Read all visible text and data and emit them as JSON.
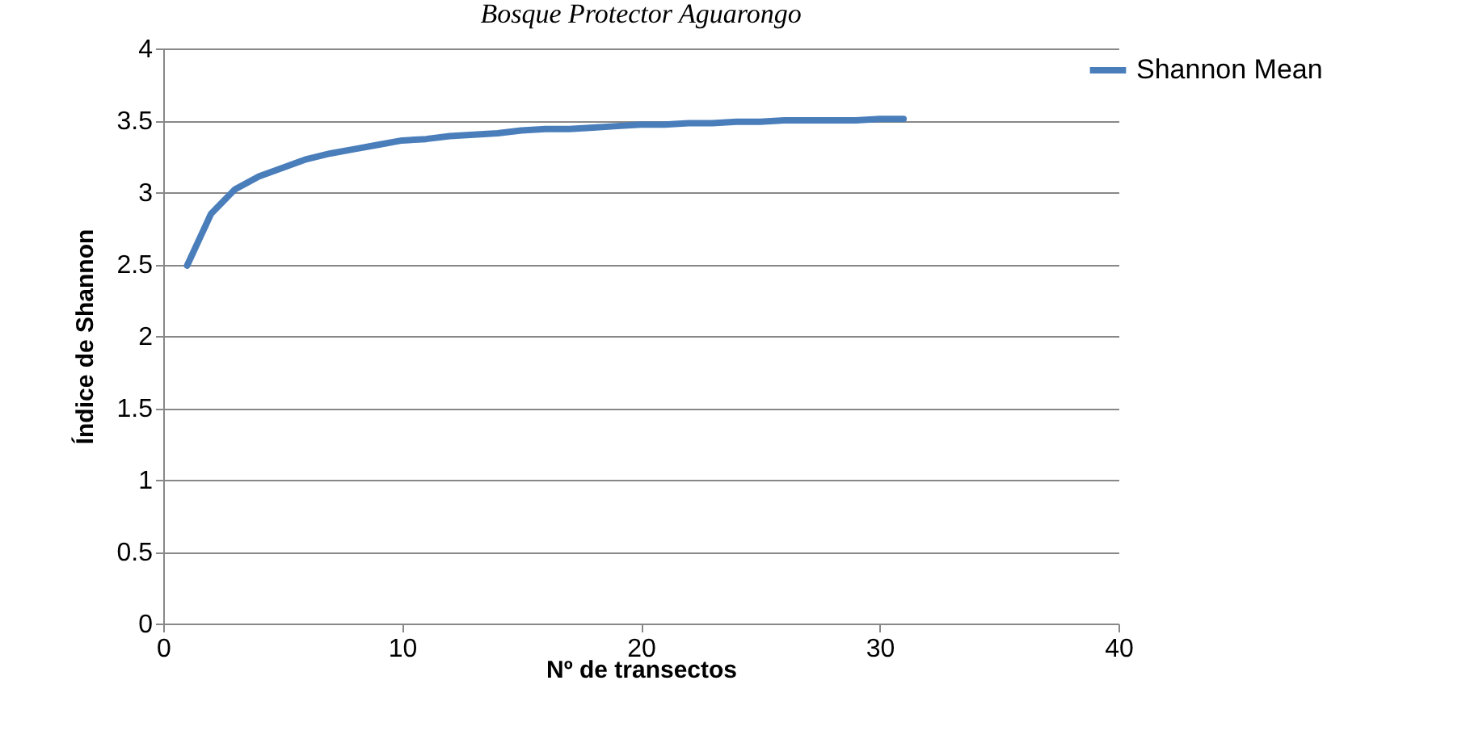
{
  "chart_data": {
    "type": "line",
    "title": "Bosque Protector Aguarongo",
    "xlabel": "Nº de transectos",
    "ylabel": "Índice de Shannon",
    "x": [
      1,
      2,
      3,
      4,
      5,
      6,
      7,
      8,
      9,
      10,
      11,
      12,
      13,
      14,
      15,
      16,
      17,
      18,
      19,
      20,
      21,
      22,
      23,
      24,
      25,
      26,
      27,
      28,
      29,
      30,
      31
    ],
    "series": [
      {
        "name": "Shannon Mean",
        "color": "#4a7ebb",
        "values": [
          2.49,
          2.85,
          3.02,
          3.11,
          3.17,
          3.23,
          3.27,
          3.3,
          3.33,
          3.36,
          3.37,
          3.39,
          3.4,
          3.41,
          3.43,
          3.44,
          3.44,
          3.45,
          3.46,
          3.47,
          3.47,
          3.48,
          3.48,
          3.49,
          3.49,
          3.5,
          3.5,
          3.5,
          3.5,
          3.51,
          3.51
        ]
      }
    ],
    "xlim": [
      0,
      40
    ],
    "xticks": [
      0,
      10,
      20,
      30,
      40
    ],
    "ylim": [
      0,
      4
    ],
    "yticks": [
      0,
      0.5,
      1,
      1.5,
      2,
      2.5,
      3,
      3.5,
      4
    ],
    "grid": "y",
    "legend": "right",
    "marker": "none",
    "line_style": "solid"
  }
}
